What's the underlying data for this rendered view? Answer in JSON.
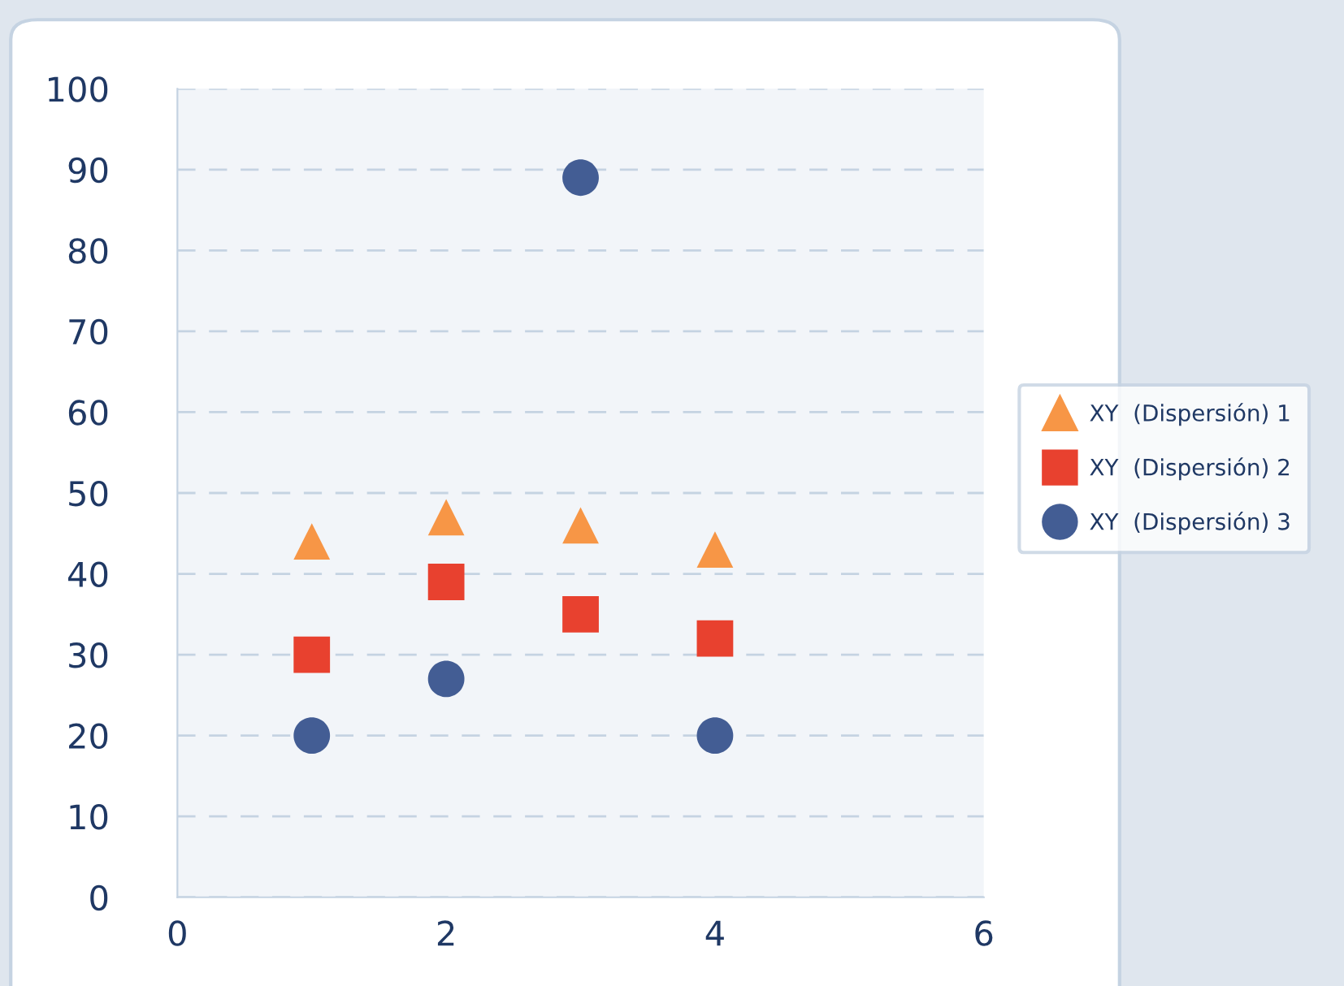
{
  "chart_data": {
    "type": "scatter",
    "series": [
      {
        "name": "XY  (Dispersión) 1",
        "color": "#f79646",
        "marker": "triangle",
        "x": [
          1,
          2,
          3,
          4
        ],
        "values": [
          44,
          47,
          46,
          43
        ]
      },
      {
        "name": "XY  (Dispersión) 2",
        "color": "#e8412f",
        "marker": "square",
        "x": [
          1,
          2,
          3,
          4
        ],
        "values": [
          30,
          39,
          35,
          32
        ]
      },
      {
        "name": "XY  (Dispersión) 3",
        "color": "#435d94",
        "marker": "circle",
        "x": [
          1,
          2,
          3,
          4
        ],
        "values": [
          20,
          27,
          89,
          20
        ]
      }
    ],
    "xlim": [
      0,
      6
    ],
    "xticks": [
      0,
      2,
      4,
      6
    ],
    "ylim": [
      0,
      100
    ],
    "yticks": [
      0,
      10,
      20,
      30,
      40,
      50,
      60,
      70,
      80,
      90,
      100
    ],
    "grid": "y",
    "line_style": "dashed",
    "legend": "right"
  }
}
